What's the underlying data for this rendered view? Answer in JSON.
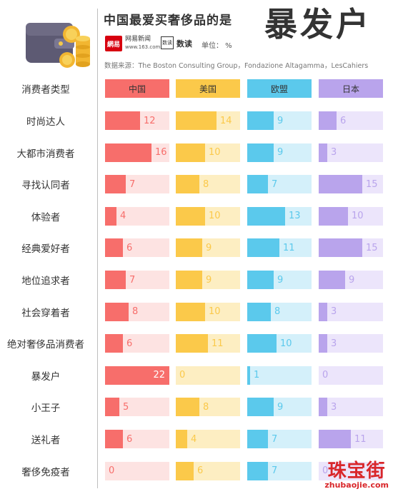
{
  "header": {
    "title_small": "中国最爱买奢侈品的是",
    "title_big": "暴发户",
    "logo_mark": "網易",
    "logo_name": "网易新闻",
    "logo_url": "www.163.com",
    "shudu_box": "数读",
    "shudu_label": "数读",
    "unit": "单位：  %",
    "source": "数据来源：The Boston Consulting Group，Fondazione Altagamma，LesCahiers"
  },
  "watermark": {
    "cn": "珠宝街",
    "en": "zhubaojie.com"
  },
  "chart_data": {
    "type": "bar",
    "layout": "small-multiples-horizontal",
    "row_header": "消费者类型",
    "categories": [
      "时尚达人",
      "大都市消费者",
      "寻找认同者",
      "体验者",
      "经典爱好者",
      "地位追求者",
      "社会穿着者",
      "绝对奢侈品消费者",
      "暴发户",
      "小王子",
      "送礼者",
      "奢侈免疫者"
    ],
    "series": [
      {
        "name": "中国",
        "color": "#f76e6b",
        "track": "#fde3e2",
        "values": [
          12,
          16,
          7,
          4,
          6,
          7,
          8,
          6,
          22,
          5,
          6,
          0
        ]
      },
      {
        "name": "美国",
        "color": "#fbc94a",
        "track": "#fdeec2",
        "values": [
          14,
          10,
          8,
          10,
          9,
          9,
          10,
          11,
          0,
          8,
          4,
          6
        ]
      },
      {
        "name": "欧盟",
        "color": "#5bc9ec",
        "track": "#d4f0fa",
        "values": [
          9,
          9,
          7,
          13,
          11,
          9,
          8,
          10,
          1,
          9,
          7,
          7
        ]
      },
      {
        "name": "日本",
        "color": "#b9a4ec",
        "track": "#ece5fb",
        "values": [
          6,
          3,
          15,
          10,
          15,
          9,
          3,
          3,
          0,
          3,
          11,
          0
        ]
      }
    ],
    "xlim": [
      0,
      22
    ]
  }
}
